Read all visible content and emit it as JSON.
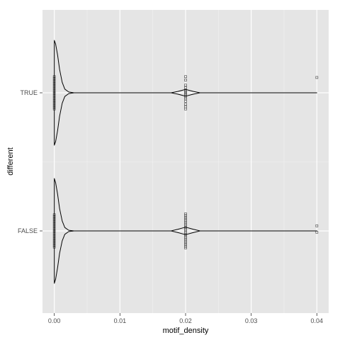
{
  "chart_data": {
    "type": "violin",
    "orientation": "horizontal",
    "xlabel": "motif_density",
    "ylabel": "different",
    "xlim": [
      -0.0018,
      0.0418
    ],
    "x_ticks": [
      0.0,
      0.01,
      0.02,
      0.03,
      0.04
    ],
    "x_tick_labels": [
      "0.00",
      "0.01",
      "0.02",
      "0.03",
      "0.04"
    ],
    "categories": [
      "TRUE",
      "FALSE"
    ],
    "grid": true,
    "legend": "none",
    "colors": {
      "panel_bg": "#e5e5e5",
      "grid_major": "#ffffff",
      "grid_minor": "#f2f2f2",
      "violin_line": "#000000",
      "points": "#555555"
    },
    "violins": [
      {
        "category": "TRUE",
        "profile": [
          {
            "x": 0.0,
            "w": 1.0
          },
          {
            "x": 0.0002,
            "w": 0.93
          },
          {
            "x": 0.0005,
            "w": 0.72
          },
          {
            "x": 0.0008,
            "w": 0.45
          },
          {
            "x": 0.0012,
            "w": 0.2
          },
          {
            "x": 0.0016,
            "w": 0.07
          },
          {
            "x": 0.0022,
            "w": 0.015
          },
          {
            "x": 0.003,
            "w": 0.0
          },
          {
            "x": 0.0178,
            "w": 0.0
          },
          {
            "x": 0.0188,
            "w": 0.025
          },
          {
            "x": 0.02,
            "w": 0.065
          },
          {
            "x": 0.0212,
            "w": 0.025
          },
          {
            "x": 0.0222,
            "w": 0.0
          },
          {
            "x": 0.04,
            "w": 0.0
          }
        ],
        "points": [
          {
            "x": 0.0,
            "offsets": [
              -0.38,
              -0.34,
              -0.3,
              -0.26,
              -0.22,
              -0.18,
              -0.14,
              -0.1,
              -0.06,
              -0.02,
              0.02,
              0.06,
              0.1,
              0.14,
              0.18,
              0.22,
              0.26,
              0.3,
              0.34,
              0.38
            ]
          },
          {
            "x": 0.02,
            "offsets": [
              -0.38,
              -0.3,
              -0.18,
              -0.12,
              -0.06,
              -0.03,
              0.0,
              0.03,
              0.06,
              0.1,
              0.14,
              0.2,
              0.27,
              0.33,
              0.38
            ]
          },
          {
            "x": 0.04,
            "offsets": [
              -0.36
            ]
          }
        ]
      },
      {
        "category": "FALSE",
        "profile": [
          {
            "x": 0.0,
            "w": 1.0
          },
          {
            "x": 0.0002,
            "w": 0.92
          },
          {
            "x": 0.0005,
            "w": 0.7
          },
          {
            "x": 0.0008,
            "w": 0.43
          },
          {
            "x": 0.0012,
            "w": 0.19
          },
          {
            "x": 0.0016,
            "w": 0.065
          },
          {
            "x": 0.0022,
            "w": 0.012
          },
          {
            "x": 0.003,
            "w": 0.0
          },
          {
            "x": 0.0178,
            "w": 0.0
          },
          {
            "x": 0.0188,
            "w": 0.03
          },
          {
            "x": 0.02,
            "w": 0.072
          },
          {
            "x": 0.0212,
            "w": 0.03
          },
          {
            "x": 0.0222,
            "w": 0.0
          },
          {
            "x": 0.04,
            "w": 0.0
          }
        ],
        "points": [
          {
            "x": 0.0,
            "offsets": [
              -0.38,
              -0.34,
              -0.3,
              -0.26,
              -0.22,
              -0.18,
              -0.14,
              -0.1,
              -0.06,
              -0.02,
              0.02,
              0.06,
              0.1,
              0.14,
              0.18,
              0.22,
              0.26,
              0.3,
              0.34,
              0.38
            ]
          },
          {
            "x": 0.02,
            "offsets": [
              -0.4,
              -0.36,
              -0.32,
              -0.28,
              -0.24,
              -0.2,
              -0.16,
              -0.12,
              -0.08,
              -0.04,
              0.0,
              0.04,
              0.08,
              0.12,
              0.16,
              0.2,
              0.24,
              0.28,
              0.32,
              0.36,
              0.4
            ]
          },
          {
            "x": 0.04,
            "offsets": [
              -0.12,
              0.03
            ]
          }
        ]
      }
    ]
  }
}
